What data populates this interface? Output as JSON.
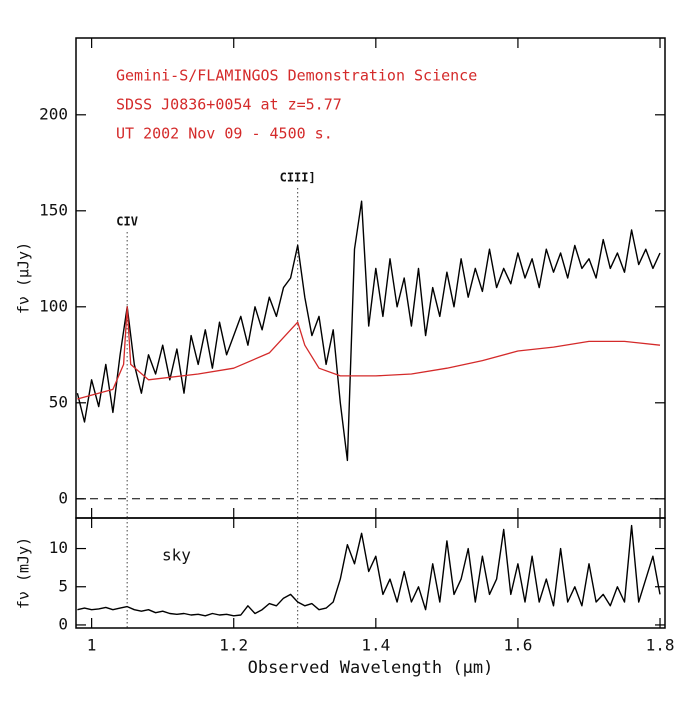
{
  "chart_data": [
    {
      "type": "line",
      "ylabel": "fν (μJy)",
      "annotations": [
        "Gemini-S/FLAMINGOS Demonstration Science",
        "SDSS J0836+0054 at z=5.77",
        "UT 2002 Nov 09 - 4500 s."
      ],
      "annotation_color": "#d42a2a",
      "xlim": [
        0.978,
        1.807
      ],
      "xticks": [
        1,
        1.2,
        1.4,
        1.6,
        1.8
      ],
      "ylim": [
        -10,
        240
      ],
      "yticks": [
        0,
        50,
        100,
        150,
        200
      ],
      "hline": 0,
      "vlines": [
        {
          "value": 1.05,
          "label": "CIV"
        },
        {
          "value": 1.29,
          "label": "CIII]"
        }
      ],
      "series": [
        {
          "color": "#000000",
          "x": [
            0.98,
            0.99,
            1.0,
            1.01,
            1.02,
            1.03,
            1.04,
            1.05,
            1.06,
            1.07,
            1.08,
            1.09,
            1.1,
            1.11,
            1.12,
            1.13,
            1.14,
            1.15,
            1.16,
            1.17,
            1.18,
            1.19,
            1.2,
            1.21,
            1.22,
            1.23,
            1.24,
            1.25,
            1.26,
            1.27,
            1.28,
            1.29,
            1.3,
            1.31,
            1.32,
            1.33,
            1.34,
            1.35,
            1.36,
            1.37,
            1.38,
            1.39,
            1.4,
            1.41,
            1.42,
            1.43,
            1.44,
            1.45,
            1.46,
            1.47,
            1.48,
            1.49,
            1.5,
            1.51,
            1.52,
            1.53,
            1.54,
            1.55,
            1.56,
            1.57,
            1.58,
            1.59,
            1.6,
            1.61,
            1.62,
            1.63,
            1.64,
            1.65,
            1.66,
            1.67,
            1.68,
            1.69,
            1.7,
            1.71,
            1.72,
            1.73,
            1.74,
            1.75,
            1.76,
            1.77,
            1.78,
            1.79,
            1.8
          ],
          "values": [
            55,
            40,
            62,
            48,
            70,
            45,
            75,
            100,
            70,
            55,
            75,
            65,
            80,
            62,
            78,
            55,
            85,
            70,
            88,
            68,
            92,
            75,
            85,
            95,
            80,
            100,
            88,
            105,
            95,
            110,
            115,
            132,
            105,
            85,
            95,
            70,
            88,
            50,
            20,
            130,
            155,
            90,
            120,
            95,
            125,
            100,
            115,
            90,
            120,
            85,
            110,
            95,
            118,
            100,
            125,
            105,
            120,
            108,
            130,
            110,
            120,
            112,
            128,
            115,
            125,
            110,
            130,
            118,
            128,
            115,
            132,
            120,
            125,
            115,
            135,
            120,
            128,
            118,
            140,
            122,
            130,
            120,
            128
          ]
        },
        {
          "color": "#d42a2a",
          "x": [
            0.98,
            1.0,
            1.03,
            1.045,
            1.05,
            1.055,
            1.08,
            1.15,
            1.2,
            1.25,
            1.28,
            1.29,
            1.3,
            1.32,
            1.35,
            1.4,
            1.45,
            1.5,
            1.55,
            1.6,
            1.65,
            1.7,
            1.75,
            1.8
          ],
          "values": [
            52,
            54,
            57,
            70,
            100,
            70,
            62,
            65,
            68,
            76,
            88,
            92,
            80,
            68,
            64,
            64,
            65,
            68,
            72,
            77,
            79,
            82,
            82,
            80
          ]
        }
      ]
    },
    {
      "type": "line",
      "ylabel": "fν (mJy)",
      "xlabel": "Observed Wavelength (μm)",
      "annotations": [
        "sky"
      ],
      "xlim": [
        0.978,
        1.807
      ],
      "xticks": [
        1,
        1.2,
        1.4,
        1.6,
        1.8
      ],
      "ylim": [
        -0.4,
        14
      ],
      "yticks": [
        0,
        5,
        10
      ],
      "vlines": [
        1.05,
        1.29
      ],
      "series": [
        {
          "color": "#000000",
          "x": [
            0.98,
            0.99,
            1.0,
            1.01,
            1.02,
            1.03,
            1.04,
            1.05,
            1.06,
            1.07,
            1.08,
            1.09,
            1.1,
            1.11,
            1.12,
            1.13,
            1.14,
            1.15,
            1.16,
            1.17,
            1.18,
            1.19,
            1.2,
            1.21,
            1.22,
            1.23,
            1.24,
            1.25,
            1.26,
            1.27,
            1.28,
            1.29,
            1.3,
            1.31,
            1.32,
            1.33,
            1.34,
            1.35,
            1.36,
            1.37,
            1.38,
            1.39,
            1.4,
            1.41,
            1.42,
            1.43,
            1.44,
            1.45,
            1.46,
            1.47,
            1.48,
            1.49,
            1.5,
            1.51,
            1.52,
            1.53,
            1.54,
            1.55,
            1.56,
            1.57,
            1.58,
            1.59,
            1.6,
            1.61,
            1.62,
            1.63,
            1.64,
            1.65,
            1.66,
            1.67,
            1.68,
            1.69,
            1.7,
            1.71,
            1.72,
            1.73,
            1.74,
            1.75,
            1.76,
            1.77,
            1.78,
            1.79,
            1.8
          ],
          "values": [
            2,
            2.2,
            2,
            2.1,
            2.3,
            2,
            2.2,
            2.4,
            2,
            1.8,
            2,
            1.6,
            1.8,
            1.5,
            1.4,
            1.5,
            1.3,
            1.4,
            1.2,
            1.5,
            1.3,
            1.4,
            1.2,
            1.3,
            2.5,
            1.5,
            2,
            2.8,
            2.5,
            3.5,
            4,
            3,
            2.5,
            2.8,
            2,
            2.2,
            3,
            6,
            10.5,
            8,
            12,
            7,
            9,
            4,
            6,
            3,
            7,
            3,
            5,
            2,
            8,
            3,
            11,
            4,
            6,
            10,
            3,
            9,
            4,
            6,
            12.5,
            4,
            8,
            3,
            9,
            3,
            6,
            2.5,
            10,
            3,
            5,
            2.5,
            8,
            3,
            4,
            2.5,
            5,
            3,
            13,
            3,
            6,
            9,
            4
          ]
        }
      ]
    }
  ]
}
